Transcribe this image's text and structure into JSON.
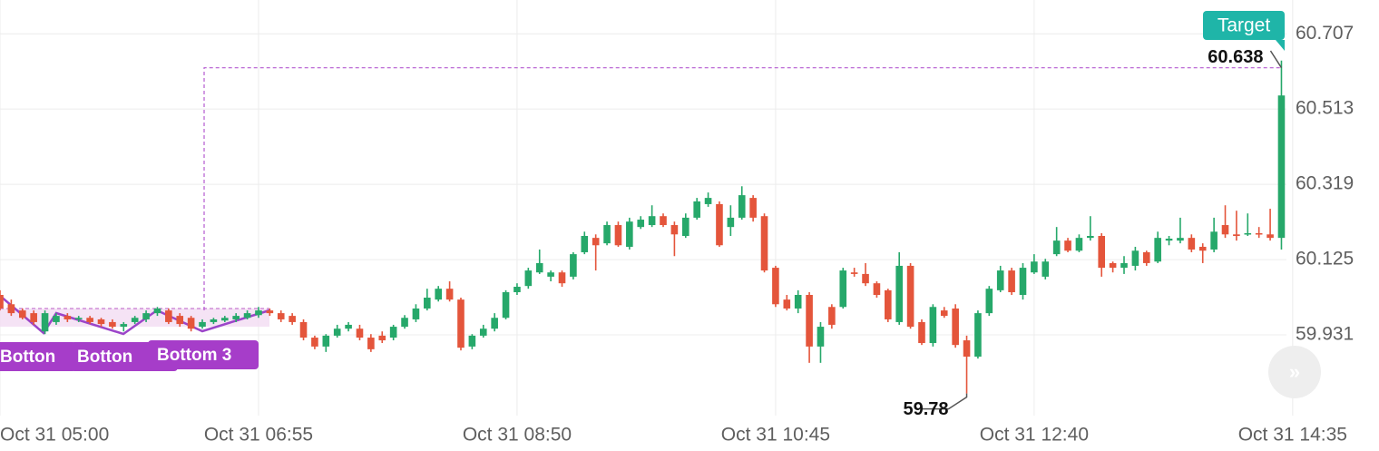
{
  "chart_data": {
    "type": "candlestick",
    "categories": [
      "Oct 31 05:00",
      null,
      null,
      null,
      null,
      null,
      null,
      null,
      null,
      null,
      null,
      null,
      null,
      null,
      null,
      null,
      null,
      null,
      null,
      null,
      null,
      null,
      null,
      "Oct 31 06:55",
      null,
      null,
      null,
      null,
      null,
      null,
      null,
      null,
      null,
      null,
      null,
      null,
      null,
      null,
      null,
      null,
      null,
      null,
      null,
      null,
      null,
      null,
      "Oct 31 08:50",
      null,
      null,
      null,
      null,
      null,
      null,
      null,
      null,
      null,
      null,
      null,
      null,
      null,
      null,
      null,
      null,
      null,
      null,
      null,
      null,
      null,
      null,
      "Oct 31 10:45",
      null,
      null,
      null,
      null,
      null,
      null,
      null,
      null,
      null,
      null,
      null,
      null,
      null,
      null,
      null,
      null,
      null,
      null,
      null,
      null,
      null,
      null,
      "Oct 31 12:40",
      null,
      null,
      null,
      null,
      null,
      null,
      null,
      null,
      null,
      null,
      null,
      null,
      null,
      null,
      null,
      null,
      null,
      null,
      null,
      null,
      null,
      null,
      "Oct 31 14:35"
    ],
    "open": [
      60.034,
      60.01,
      59.994,
      59.987,
      59.94,
      59.964,
      59.98,
      59.971,
      59.975,
      59.971,
      59.964,
      59.952,
      59.964,
      59.971,
      59.987,
      59.994,
      59.98,
      59.975,
      59.952,
      59.964,
      59.968,
      59.971,
      59.975,
      59.982,
      59.994,
      59.987,
      59.98,
      59.964,
      59.924,
      59.901,
      59.929,
      59.947,
      59.947,
      59.924,
      59.929,
      59.924,
      59.952,
      59.971,
      59.999,
      60.022,
      60.05,
      60.022,
      59.901,
      59.929,
      59.947,
      59.975,
      60.041,
      60.057,
      60.092,
      60.081,
      60.092,
      60.081,
      60.144,
      60.181,
      60.167,
      60.214,
      60.158,
      60.209,
      60.214,
      60.237,
      60.214,
      60.186,
      60.233,
      60.268,
      60.268,
      60.209,
      60.233,
      60.284,
      60.237,
      60.104,
      60.022,
      59.999,
      60.034,
      59.901,
      60.003,
      60.003,
      60.092,
      60.088,
      60.064,
      60.046,
      59.964,
      60.109,
      59.964,
      59.91,
      59.994,
      59.999,
      59.917,
      59.875,
      59.987,
      60.046,
      60.097,
      60.034,
      60.092,
      60.081,
      60.139,
      60.174,
      60.148,
      60.181,
      60.186,
      60.116,
      60.104,
      60.109,
      60.144,
      60.12,
      60.174,
      60.174,
      60.181,
      60.158,
      60.151,
      60.214,
      60.19,
      60.19,
      60.193,
      60.19,
      60.181,
      null
    ],
    "high": [
      60.046,
      60.022,
      59.999,
      59.994,
      59.994,
      59.987,
      59.987,
      59.98,
      59.98,
      59.975,
      59.971,
      59.964,
      59.98,
      59.994,
      60.003,
      59.999,
      59.987,
      59.98,
      59.971,
      59.975,
      59.98,
      59.987,
      59.994,
      60.003,
      59.999,
      59.994,
      59.987,
      59.971,
      59.929,
      59.933,
      59.957,
      59.964,
      59.957,
      59.933,
      59.94,
      59.957,
      59.982,
      60.01,
      60.05,
      60.057,
      60.069,
      60.027,
      59.933,
      59.957,
      59.987,
      60.046,
      60.064,
      60.104,
      60.151,
      60.097,
      60.097,
      60.144,
      60.197,
      60.19,
      60.223,
      60.223,
      60.233,
      60.237,
      60.265,
      60.244,
      60.223,
      60.244,
      60.284,
      60.298,
      60.275,
      60.265,
      60.314,
      60.291,
      60.244,
      60.109,
      60.034,
      60.046,
      60.041,
      59.964,
      60.01,
      60.104,
      60.104,
      60.116,
      60.069,
      60.05,
      60.144,
      60.116,
      59.971,
      60.01,
      60.003,
      60.01,
      59.929,
      59.994,
      60.057,
      60.109,
      60.104,
      60.116,
      60.139,
      60.127,
      60.209,
      60.181,
      60.19,
      60.237,
      60.193,
      60.12,
      60.134,
      60.158,
      60.148,
      60.197,
      60.186,
      60.233,
      60.19,
      60.167,
      60.233,
      60.265,
      60.251,
      60.244,
      60.209,
      60.256,
      60.638,
      null
    ],
    "low": [
      59.994,
      59.98,
      59.971,
      59.957,
      59.933,
      59.957,
      59.964,
      59.964,
      59.959,
      59.952,
      59.947,
      59.94,
      59.959,
      59.964,
      59.98,
      59.959,
      59.952,
      59.94,
      59.947,
      59.959,
      59.964,
      59.964,
      59.971,
      59.975,
      59.98,
      59.964,
      59.957,
      59.917,
      59.894,
      59.887,
      59.924,
      59.94,
      59.917,
      59.887,
      59.91,
      59.917,
      59.947,
      59.964,
      59.994,
      60.017,
      60.017,
      59.891,
      59.894,
      59.924,
      59.94,
      59.971,
      60.034,
      60.05,
      60.088,
      60.069,
      60.055,
      60.074,
      60.139,
      60.097,
      60.162,
      60.158,
      60.151,
      60.204,
      60.209,
      60.209,
      60.134,
      60.181,
      60.228,
      60.261,
      60.158,
      60.186,
      60.228,
      60.223,
      60.092,
      60.003,
      59.994,
      59.987,
      59.859,
      59.859,
      59.947,
      59.999,
      60.081,
      60.057,
      60.027,
      59.964,
      59.957,
      59.947,
      59.905,
      59.901,
      59.975,
      59.898,
      59.78,
      59.87,
      59.98,
      60.041,
      60.034,
      60.022,
      60.088,
      60.074,
      60.134,
      60.144,
      60.144,
      60.174,
      60.081,
      60.092,
      60.088,
      60.097,
      60.109,
      60.116,
      60.162,
      60.167,
      60.144,
      60.116,
      60.144,
      60.181,
      60.174,
      60.186,
      60.181,
      60.174,
      60.151,
      null
    ],
    "close": [
      59.999,
      59.987,
      59.975,
      59.964,
      59.987,
      59.98,
      59.971,
      59.975,
      59.964,
      59.959,
      59.952,
      59.959,
      59.975,
      59.987,
      59.999,
      59.964,
      59.959,
      59.947,
      59.964,
      59.971,
      59.975,
      59.98,
      59.987,
      59.994,
      59.987,
      59.971,
      59.964,
      59.924,
      59.901,
      59.929,
      59.947,
      59.957,
      59.924,
      59.894,
      59.917,
      59.952,
      59.975,
      59.999,
      60.027,
      60.05,
      60.022,
      59.898,
      59.929,
      59.947,
      59.975,
      60.041,
      60.055,
      60.097,
      60.116,
      60.092,
      60.064,
      60.139,
      60.186,
      60.162,
      60.214,
      60.162,
      60.223,
      60.228,
      60.237,
      60.214,
      60.19,
      60.233,
      60.275,
      60.284,
      60.162,
      60.233,
      60.291,
      60.233,
      60.097,
      60.01,
      59.999,
      60.034,
      59.901,
      59.952,
      59.957,
      60.097,
      60.088,
      60.064,
      60.034,
      59.971,
      60.109,
      59.952,
      59.91,
      60.003,
      59.98,
      59.905,
      59.875,
      59.987,
      60.05,
      60.097,
      60.041,
      60.104,
      60.12,
      60.12,
      60.174,
      60.148,
      60.181,
      60.186,
      60.104,
      60.104,
      60.116,
      60.148,
      60.116,
      60.181,
      60.179,
      60.181,
      60.151,
      60.148,
      60.197,
      60.19,
      60.186,
      60.193,
      60.19,
      60.181,
      60.548,
      null
    ],
    "up_color": "#26a86a",
    "down_color": "#e4553b",
    "ylim": [
      59.723,
      60.794
    ],
    "yticks": [
      59.931,
      60.125,
      60.319,
      60.513,
      60.707
    ],
    "grid": true,
    "target_label": "Target",
    "pattern_labels": [
      "Botton",
      "Botton",
      "Bottom 3"
    ]
  }
}
